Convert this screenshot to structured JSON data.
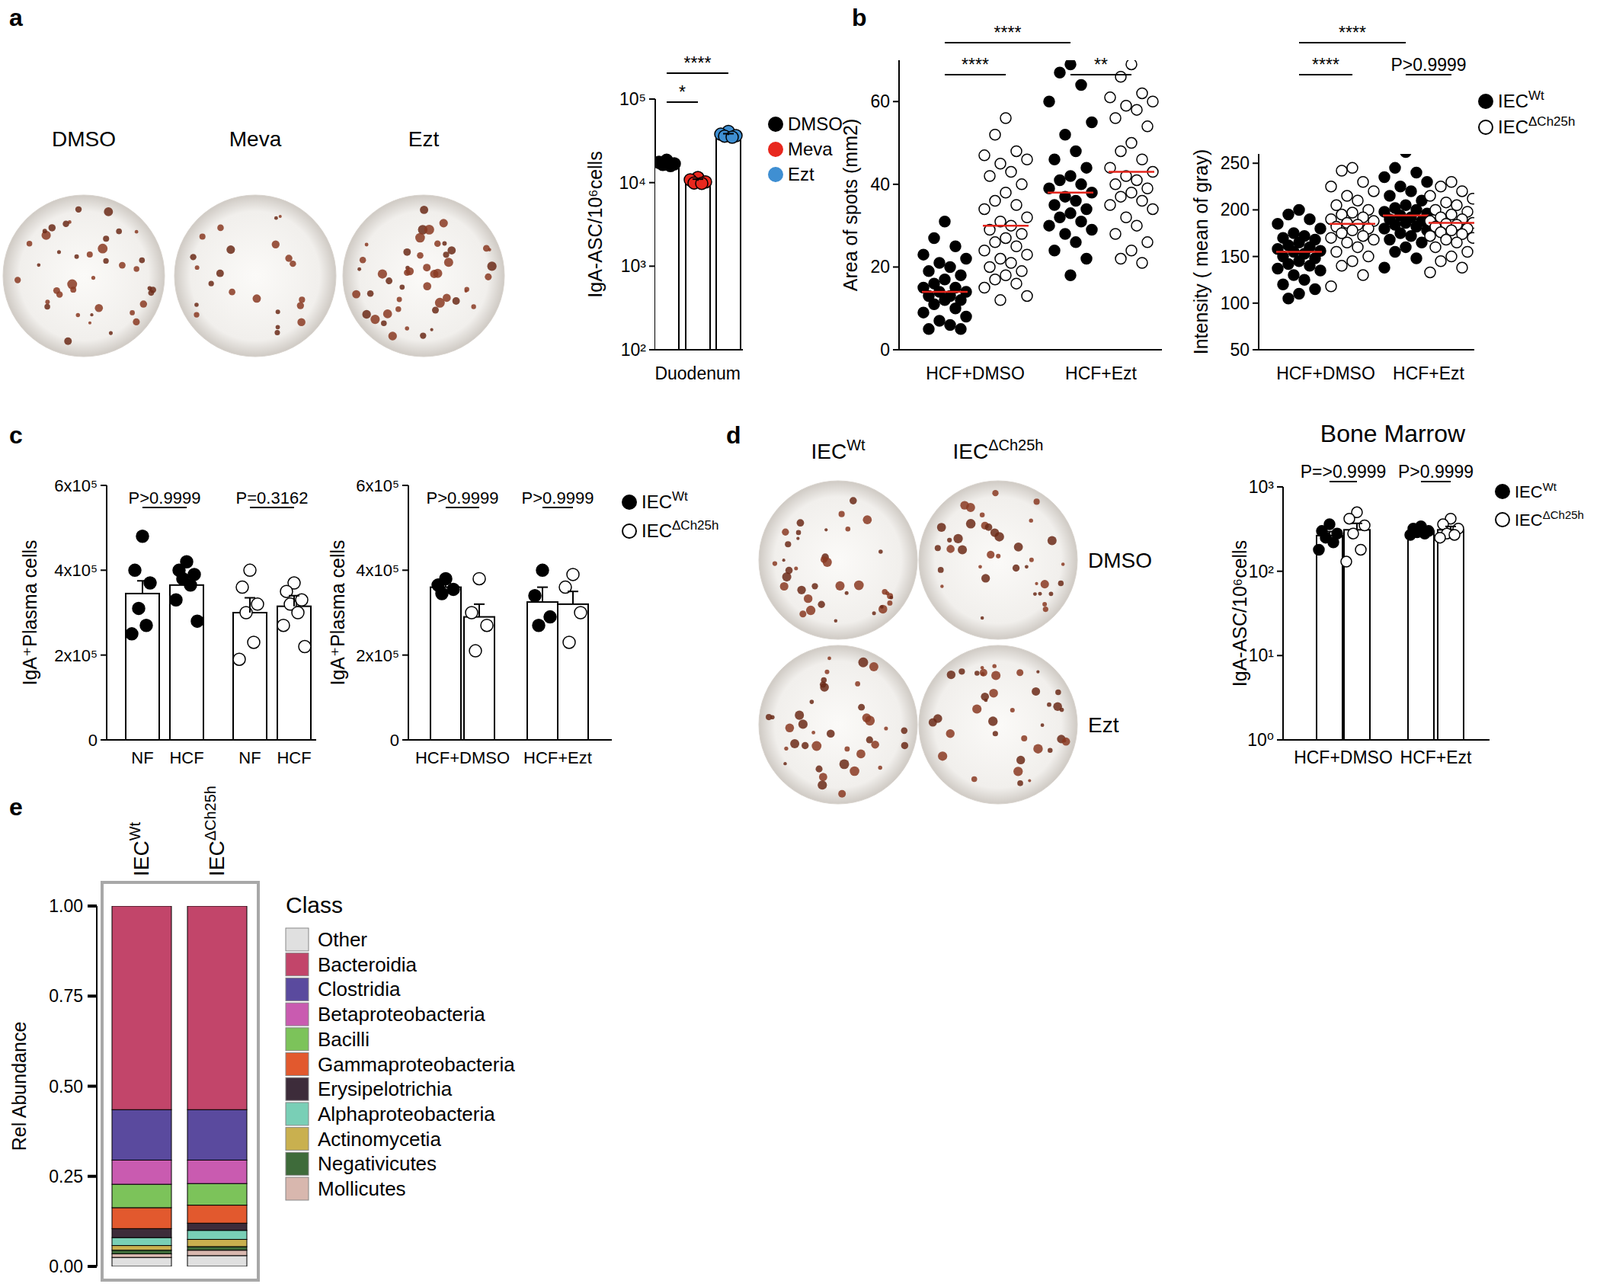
{
  "panel_labels": [
    "a",
    "b",
    "c",
    "d",
    "e"
  ],
  "images": {
    "a": {
      "labels": [
        "DMSO",
        "Meva",
        "Ezt"
      ]
    },
    "d": {
      "columns": [
        "IECWt",
        "IECΔCh25h"
      ],
      "rows": [
        "DMSO",
        "Ezt"
      ]
    }
  },
  "chart_data": [
    {
      "type": "bar",
      "log": "y",
      "ylabel": "IgA-ASC/10⁶cells",
      "categories": [
        "Duodenum"
      ],
      "ylim": [
        100,
        100000
      ],
      "yticks": [
        {
          "value": 100,
          "label": "10²"
        },
        {
          "value": 1000,
          "label": "10³"
        },
        {
          "value": 10000,
          "label": "10⁴"
        },
        {
          "value": 100000,
          "label": "10⁵"
        }
      ],
      "legend": "right",
      "series": [
        {
          "name": "DMSO",
          "color": "#000000",
          "marker": "filled",
          "values": [
            17000
          ],
          "errors": [
            900
          ],
          "points": [
            [
              18500,
              17500,
              16800,
              16500,
              16000
            ]
          ]
        },
        {
          "name": "Meva",
          "color": "#e8281e",
          "marker": "filled",
          "values": [
            10500
          ],
          "errors": [
            500
          ],
          "points": [
            [
              11500,
              10800,
              10200,
              9900,
              9800
            ]
          ]
        },
        {
          "name": "Ezt",
          "color": "#3f8fd2",
          "marker": "filled",
          "values": [
            37000
          ],
          "errors": [
            1500
          ],
          "points": [
            [
              41000,
              38000,
              36500,
              36000,
              35000
            ]
          ]
        }
      ],
      "annotations": [
        {
          "text": "*",
          "from": 0,
          "to": 1
        },
        {
          "text": "****",
          "from": 0,
          "to": 2
        }
      ]
    },
    {
      "type": "dot",
      "ylabel": "Area of spots (mm2)",
      "categories": [
        "HCF+DMSO",
        "HCF+Ezt"
      ],
      "ylim": [
        0,
        70
      ],
      "yticks": [
        0,
        20,
        40,
        60
      ],
      "series": [
        {
          "color": "#000000",
          "marker": "filled",
          "values": [
            14,
            38
          ],
          "points": [
            [
              31,
              27,
              25,
              23,
              22,
              21,
              20,
              19,
              18,
              17,
              16,
              15,
              15,
              14,
              14,
              13,
              13,
              12,
              12,
              11,
              10,
              9,
              8,
              7,
              6,
              5,
              5
            ],
            [
              69,
              67,
              64,
              60,
              55,
              52,
              48,
              46,
              44,
              42,
              41,
              40,
              39,
              38,
              37,
              36,
              35,
              34,
              33,
              32,
              31,
              30,
              29,
              28,
              26,
              24,
              22,
              18
            ]
          ]
        },
        {
          "color": "#000000",
          "marker": "open",
          "values": [
            30,
            43
          ],
          "points": [
            [
              56,
              52,
              48,
              47,
              46,
              45,
              43,
              42,
              40,
              38,
              36,
              35,
              34,
              32,
              31,
              30,
              29,
              28,
              27,
              26,
              25,
              24,
              23,
              22,
              21,
              20,
              19,
              18,
              17,
              16,
              15,
              13,
              12
            ],
            [
              69,
              66,
              62,
              61,
              60,
              59,
              58,
              56,
              54,
              50,
              48,
              46,
              44,
              43,
              42,
              41,
              40,
              39,
              38,
              37,
              36,
              35,
              34,
              32,
              30,
              28,
              26,
              24,
              22,
              21
            ]
          ]
        }
      ],
      "annotations": [
        {
          "text": "****",
          "from": 0,
          "to": 2
        },
        {
          "text": "****",
          "from": 0,
          "to": 1
        },
        {
          "text": "**",
          "from": 2,
          "to": 3
        }
      ]
    },
    {
      "type": "dot",
      "ylabel": "Intensity ( mean of gray)",
      "categories": [
        "HCF+DMSO",
        "HCF+Ezt"
      ],
      "ylim": [
        50,
        260
      ],
      "yticks": [
        50,
        100,
        150,
        200,
        250
      ],
      "legend": "right",
      "series": [
        {
          "name": "IECWt",
          "color": "#000000",
          "marker": "filled",
          "values": [
            155,
            194
          ],
          "points": [
            [
              200,
              195,
              190,
              185,
              180,
              175,
              172,
              170,
              168,
              165,
              162,
              160,
              158,
              156,
              155,
              153,
              150,
              148,
              145,
              142,
              140,
              137,
              135,
              130,
              125,
              120,
              115,
              110,
              105
            ],
            [
              262,
              245,
              240,
              235,
              230,
              225,
              220,
              215,
              210,
              205,
              202,
              200,
              198,
              196,
              194,
              192,
              190,
              188,
              186,
              184,
              182,
              180,
              178,
              175,
              172,
              168,
              165,
              160,
              155,
              148,
              138
            ]
          ]
        },
        {
          "name": "IECΔCh25h",
          "color": "#000000",
          "marker": "open",
          "values": [
            185,
            186
          ],
          "points": [
            [
              245,
              242,
              230,
              225,
              220,
              215,
              210,
              205,
              200,
              197,
              195,
              192,
              190,
              188,
              186,
              184,
              182,
              180,
              178,
              175,
              172,
              170,
              168,
              165,
              160,
              155,
              150,
              145,
              140,
              130,
              118
            ],
            [
              230,
              225,
              220,
              215,
              212,
              208,
              205,
              200,
              198,
              195,
              192,
              190,
              188,
              186,
              185,
              184,
              182,
              180,
              178,
              176,
              174,
              172,
              170,
              168,
              165,
              160,
              155,
              150,
              145,
              138,
              133
            ]
          ]
        }
      ],
      "annotations": [
        {
          "text": "****",
          "from": 0,
          "to": 2
        },
        {
          "text": "****",
          "from": 0,
          "to": 1
        },
        {
          "text": "P>0.9999",
          "from": 2,
          "to": 3
        }
      ]
    },
    {
      "type": "bar",
      "ylabel": "IgA⁺Plasma cells",
      "categories": [
        "NF",
        "HCF",
        "NF",
        "HCF"
      ],
      "ylim": [
        0,
        600000
      ],
      "yticks": [
        0,
        {
          "value": 200000,
          "label": "2x10⁵"
        },
        {
          "value": 400000,
          "label": "4x10⁵"
        },
        {
          "value": 600000,
          "label": "6x10⁵"
        }
      ],
      "series": [
        {
          "color": "#000000",
          "marker": "filled",
          "values": [
            345000,
            365000,
            null,
            null
          ],
          "errors": [
            30000,
            20000,
            null,
            null
          ],
          "points": [
            [
              480000,
              400000,
              370000,
              310000,
              270000,
              250000
            ],
            [
              420000,
              400000,
              390000,
              380000,
              365000,
              330000,
              280000
            ],
            null,
            null
          ]
        },
        {
          "color": "#000000",
          "marker": "open",
          "values": [
            null,
            null,
            300000,
            315000
          ],
          "errors": [
            null,
            null,
            35000,
            25000
          ],
          "points": [
            null,
            null,
            [
              400000,
              360000,
              320000,
              300000,
              230000,
              190000
            ],
            [
              370000,
              350000,
              330000,
              320000,
              300000,
              270000,
              220000
            ]
          ]
        }
      ],
      "annotations": [
        {
          "text": "P>0.9999",
          "from": 0,
          "to": 1
        },
        {
          "text": "P=0.3162",
          "from": 2,
          "to": 3
        }
      ]
    },
    {
      "type": "bar",
      "ylabel": "IgA⁺Plasma cells",
      "categories": [
        "HCF+DMSO",
        "HCF+Ezt"
      ],
      "ylim": [
        0,
        600000
      ],
      "yticks": [
        0,
        {
          "value": 200000,
          "label": "2x10⁵"
        },
        {
          "value": 400000,
          "label": "4x10⁵"
        },
        {
          "value": 600000,
          "label": "6x10⁵"
        }
      ],
      "legend": "right",
      "series": [
        {
          "name": "IECWt",
          "color": "#000000",
          "marker": "filled",
          "values": [
            360000,
            325000
          ],
          "errors": [
            10000,
            35000
          ],
          "points": [
            [
              380000,
              365000,
              355000,
              345000
            ],
            [
              400000,
              340000,
              290000,
              270000
            ]
          ]
        },
        {
          "name": "IECΔCh25h",
          "color": "#000000",
          "marker": "open",
          "values": [
            290000,
            320000
          ],
          "errors": [
            30000,
            30000
          ],
          "points": [
            [
              380000,
              300000,
              270000,
              210000
            ],
            [
              390000,
              360000,
              300000,
              230000
            ]
          ]
        }
      ],
      "annotations": [
        {
          "text": "P>0.9999",
          "from": 0,
          "to": 1
        },
        {
          "text": "P>0.9999",
          "from": 2,
          "to": 3
        }
      ]
    },
    {
      "type": "bar",
      "title": "Bone Marrow",
      "log": "y",
      "ylabel": "IgA-ASC/10⁶cells",
      "categories": [
        "HCF+DMSO",
        "HCF+Ezt"
      ],
      "ylim": [
        1,
        1000
      ],
      "yticks": [
        {
          "value": 1,
          "label": "10⁰"
        },
        {
          "value": 10,
          "label": "10¹"
        },
        {
          "value": 100,
          "label": "10²"
        },
        {
          "value": 1000,
          "label": "10³"
        }
      ],
      "legend": "right",
      "series": [
        {
          "name": "IECWt",
          "color": "#000000",
          "marker": "filled",
          "values": [
            265,
            300
          ],
          "errors": [
            30,
            15
          ],
          "points": [
            [
              360,
              300,
              280,
              250,
              220,
              180
            ],
            [
              340,
              320,
              300,
              290,
              280,
              270
            ]
          ]
        },
        {
          "name": "IECΔCh25h",
          "color": "#000000",
          "marker": "open",
          "values": [
            310,
            310
          ],
          "errors": [
            60,
            30
          ],
          "points": [
            [
              500,
              420,
              350,
              280,
              180,
              130
            ],
            [
              420,
              360,
              320,
              280,
              270,
              250
            ]
          ]
        }
      ],
      "annotations": [
        {
          "text": "P=>0.9999",
          "from": 0,
          "to": 1
        },
        {
          "text": "P>0.9999",
          "from": 2,
          "to": 3
        }
      ]
    },
    {
      "type": "bar",
      "stacked": true,
      "ylabel": "Rel Abundance",
      "categories": [
        "IECWt",
        "IECΔCh25h"
      ],
      "ylim": [
        0,
        1
      ],
      "yticks": [
        {
          "value": 0,
          "label": "0.00"
        },
        {
          "value": 0.25,
          "label": "0.25"
        },
        {
          "value": 0.5,
          "label": "0.50"
        },
        {
          "value": 0.75,
          "label": "0.75"
        },
        {
          "value": 1,
          "label": "1.00"
        }
      ],
      "legend": "right",
      "legend_title": "Class",
      "series": [
        {
          "name": "Other",
          "color": "#e0e0e0",
          "values": [
            0.025,
            0.03
          ]
        },
        {
          "name": "Bacteroidia",
          "color": "#c2456a",
          "values": [
            0.565,
            0.565
          ]
        },
        {
          "name": "Clostridia",
          "color": "#5a4a9e",
          "values": [
            0.14,
            0.14
          ]
        },
        {
          "name": "Betaproteobacteria",
          "color": "#c95bb0",
          "values": [
            0.067,
            0.065
          ]
        },
        {
          "name": "Bacilli",
          "color": "#7cc35a",
          "values": [
            0.065,
            0.06
          ]
        },
        {
          "name": "Gammaproteobacteria",
          "color": "#e2592e",
          "values": [
            0.058,
            0.05
          ]
        },
        {
          "name": "Erysipelotrichia",
          "color": "#3d2c3a",
          "values": [
            0.025,
            0.02
          ]
        },
        {
          "name": "Alphaproteobacteria",
          "color": "#79cfb6",
          "values": [
            0.022,
            0.025
          ]
        },
        {
          "name": "Actinomycetia",
          "color": "#c9b04f",
          "values": [
            0.013,
            0.02
          ]
        },
        {
          "name": "Negativicutes",
          "color": "#3e6b3a",
          "values": [
            0.01,
            0.01
          ]
        },
        {
          "name": "Mollicutes",
          "color": "#d8b7ae",
          "values": [
            0.01,
            0.015
          ]
        }
      ]
    }
  ]
}
